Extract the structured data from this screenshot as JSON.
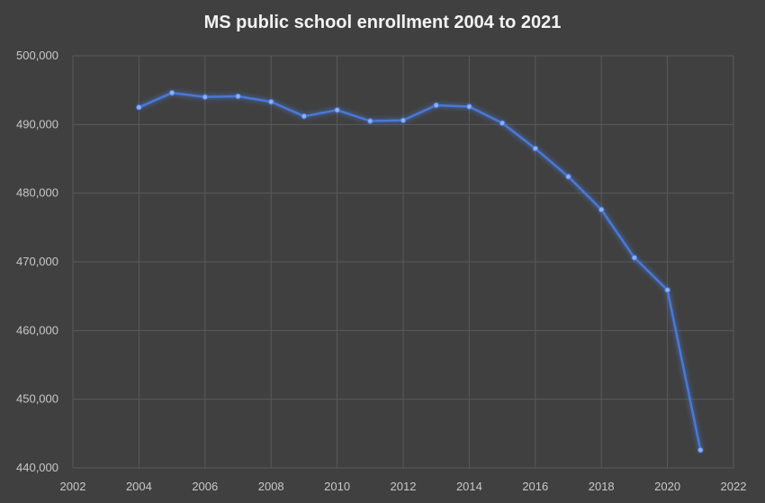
{
  "chart_data": {
    "type": "line",
    "title": "MS public school enrollment 2004 to 2021",
    "xlabel": "",
    "ylabel": "",
    "xlim": [
      2002,
      2022
    ],
    "ylim": [
      440000,
      500000
    ],
    "x_ticks": [
      "2002",
      "2004",
      "2006",
      "2008",
      "2010",
      "2012",
      "2014",
      "2016",
      "2018",
      "2020",
      "2022"
    ],
    "y_ticks": [
      "440,000",
      "450,000",
      "460,000",
      "470,000",
      "480,000",
      "490,000",
      "500,000"
    ],
    "grid": true,
    "legend": "none",
    "line_color": "#4a78d6",
    "series": [
      {
        "x": [
          2004,
          2005,
          2006,
          2007,
          2008,
          2009,
          2010,
          2011,
          2012,
          2013,
          2014,
          2015,
          2016,
          2017,
          2018,
          2019,
          2020,
          2021
        ],
        "values": [
          492500,
          494600,
          494000,
          494100,
          493300,
          491200,
          492100,
          490500,
          490600,
          492800,
          492600,
          490200,
          486500,
          482400,
          477600,
          470600,
          465900,
          442600
        ]
      }
    ]
  }
}
